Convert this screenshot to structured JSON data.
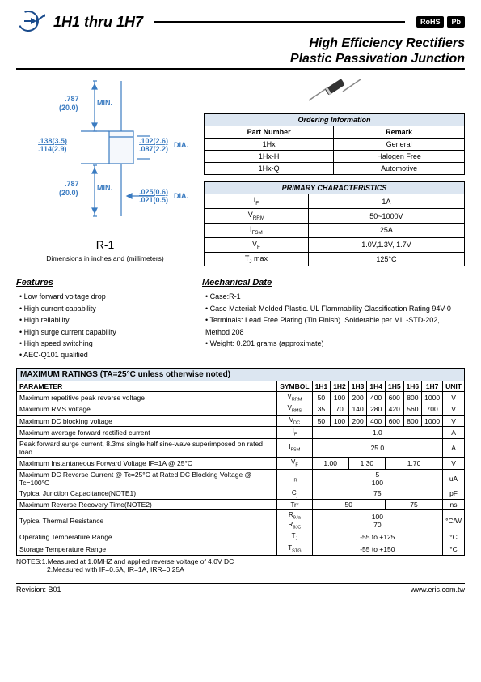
{
  "header": {
    "part_title": "1H1  thru 1H7",
    "badge1": "RoHS",
    "badge2": "Pb",
    "subtitle_l1": "High Efficiency Rectifiers",
    "subtitle_l2": "Plastic Passivation Junction"
  },
  "diagram": {
    "dims": {
      "d1a": ".787",
      "d1b": "(20.0)",
      "d1c": "MIN.",
      "d2a": ".138(3.5)",
      "d2b": ".114(2.9)",
      "d3a": ".102(2.6)",
      "d3b": ".087(2.2)",
      "d3c": "DIA.",
      "d4a": ".787",
      "d4b": "(20.0)",
      "d4c": "MIN.",
      "d5a": ".025(0.6)",
      "d5b": ".021(0.5)",
      "d5c": "DIA."
    },
    "package": "R-1",
    "dim_text": "Dimensions in inches and (millimeters)",
    "colors": {
      "line": "#3a7bc1",
      "text": "#3a7bc1"
    }
  },
  "ordering": {
    "title": "Ordering Information",
    "cols": [
      "Part Number",
      "Remark"
    ],
    "rows": [
      [
        "1Hx",
        "General"
      ],
      [
        "1Hx-H",
        "Halogen Free"
      ],
      [
        "1Hx-Q",
        "Automotive"
      ]
    ]
  },
  "primary": {
    "title": "PRIMARY CHARACTERISTICS",
    "rows": [
      [
        "I<sub>F</sub>",
        "1A"
      ],
      [
        "V<sub>RRM</sub>",
        "50~1000V"
      ],
      [
        "I<sub>FSM</sub>",
        "25A"
      ],
      [
        "V<sub>F</sub>",
        "1.0V,1.3V, 1.7V"
      ],
      [
        "T<sub>J</sub> max",
        "125°C"
      ]
    ]
  },
  "features": {
    "title": "Features",
    "items": [
      "Low forward voltage drop",
      "High current capability",
      "High reliability",
      "High surge current capability",
      "High speed switching",
      "AEC-Q101 qualified"
    ]
  },
  "mechanical": {
    "title": "Mechanical Date",
    "items": [
      "Case:R-1",
      "Case Material: Molded Plastic. UL Flammability Classification Rating 94V-0",
      "Terminals: Lead Free Plating (Tin Finish). Solderable per MIL-STD-202, Method 208",
      "Weight: 0.201 grams (approximate)"
    ]
  },
  "maxratings": {
    "title": "MAXIMUM RATINGS (TA=25°C unless otherwise noted)",
    "head": [
      "PARAMETER",
      "SYMBOL",
      "1H1",
      "1H2",
      "1H3",
      "1H4",
      "1H5",
      "1H6",
      "1H7",
      "UNIT"
    ],
    "rows": [
      {
        "param": "Maximum repetitive peak reverse voltage",
        "sym": "V<sub>RRM</sub>",
        "vals": [
          "50",
          "100",
          "200",
          "400",
          "600",
          "800",
          "1000"
        ],
        "unit": "V"
      },
      {
        "param": "Maximum RMS voltage",
        "sym": "V<sub>RMS</sub>",
        "vals": [
          "35",
          "70",
          "140",
          "280",
          "420",
          "560",
          "700"
        ],
        "unit": "V"
      },
      {
        "param": "Maximum DC blocking voltage",
        "sym": "V<sub>DC</sub>",
        "vals": [
          "50",
          "100",
          "200",
          "400",
          "600",
          "800",
          "1000"
        ],
        "unit": "V"
      },
      {
        "param": "Maximum average forward rectified current",
        "sym": "I<sub>F</sub>",
        "span": "1.0",
        "unit": "A"
      },
      {
        "param": "Peak forward surge current, 8.3ms single half sine-wave superimposed on rated load",
        "sym": "I<sub>FSM</sub>",
        "span": "25.0",
        "unit": "A"
      },
      {
        "param": "Maximum Instantaneous Forward Voltage IF=1A @ 25°C",
        "sym": "V<sub>F</sub>",
        "spans": [
          [
            "1.00",
            2
          ],
          [
            "1.30",
            2
          ],
          [
            "1.70",
            3
          ]
        ],
        "unit": "V"
      },
      {
        "param": "Maximum DC Reverse Current @ Tc=25°C at Rated DC Blocking Voltage @ Tc=100°C",
        "sym": "I<sub>R</sub>",
        "span2": [
          "5",
          "100"
        ],
        "unit": "uA"
      },
      {
        "param": "Typical Junction Capacitance(NOTE1)",
        "sym": "C<sub>j</sub>",
        "span": "75",
        "unit": "pF"
      },
      {
        "param": "Maximum Reverse Recovery Time(NOTE2)",
        "sym": "Trr",
        "spans": [
          [
            "50",
            4
          ],
          [
            "75",
            3
          ]
        ],
        "unit": "ns"
      },
      {
        "param": "Typical Thermal Resistance",
        "sym": "R<sub>θJa</sub><br>R<sub>θJC</sub>",
        "span2": [
          "100",
          "70"
        ],
        "unit": "°C/W"
      },
      {
        "param": "Operating Temperature Range",
        "sym": "T<sub>J</sub>",
        "span": "-55 to +125",
        "unit": "°C"
      },
      {
        "param": "Storage Temperature Range",
        "sym": "T<sub>STG</sub>",
        "span": "-55 to +150",
        "unit": "°C"
      }
    ]
  },
  "notes": {
    "n1": "NOTES:1.Measured at 1.0MHZ and applied reverse voltage of 4.0V DC",
    "n2": "2.Measured with IF=0.5A, IR=1A, IRR=0.25A"
  },
  "footer": {
    "rev": "Revision: B01",
    "url": "www.eris.com.tw"
  }
}
